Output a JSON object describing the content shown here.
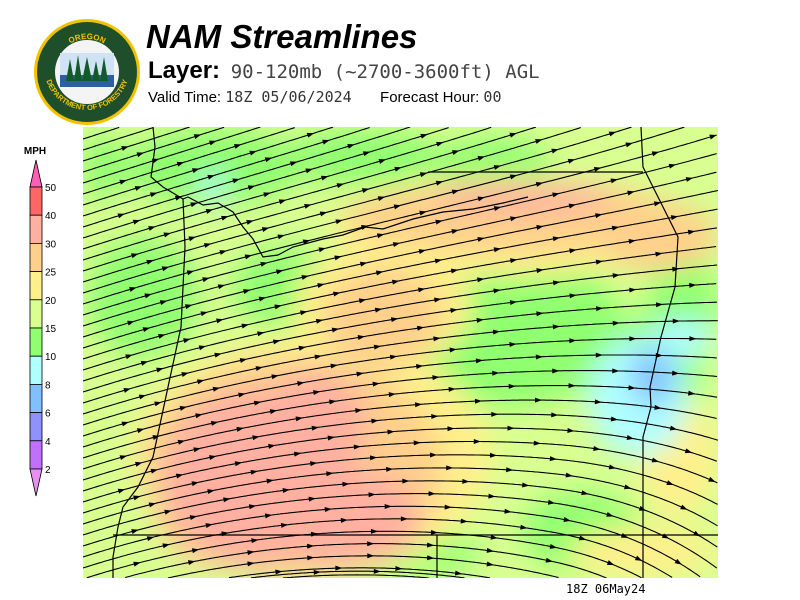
{
  "header": {
    "logo_text_top": "OREGON",
    "logo_text_bottom": "DEPARTMENT OF FORESTRY",
    "title": "NAM Streamlines",
    "layer_label": "Layer:",
    "layer_value": "90-120mb (~2700-3600ft) AGL",
    "valid_time_label": "Valid Time:",
    "valid_time_value": "18Z 05/06/2024",
    "forecast_hour_label": "Forecast Hour:",
    "forecast_hour_value": "00"
  },
  "colorbar": {
    "unit": "MPH",
    "levels": [
      "50",
      "40",
      "30",
      "25",
      "20",
      "15",
      "10",
      "8",
      "6",
      "4",
      "2"
    ],
    "colors": {
      "above_50": "#ff5fb4",
      "40_50": "#ff6666",
      "30_40": "#ffb0a0",
      "25_30": "#ffd08c",
      "20_25": "#fff08c",
      "15_20": "#d8ff90",
      "10_15": "#90ff70",
      "8_10": "#b0ffff",
      "6_8": "#80c0ff",
      "4_6": "#9090ff",
      "2_4": "#c070ff",
      "below_2": "#e890f0"
    }
  },
  "map": {
    "field": "wind speed with streamlines",
    "timestamp": "18Z 06May24"
  }
}
